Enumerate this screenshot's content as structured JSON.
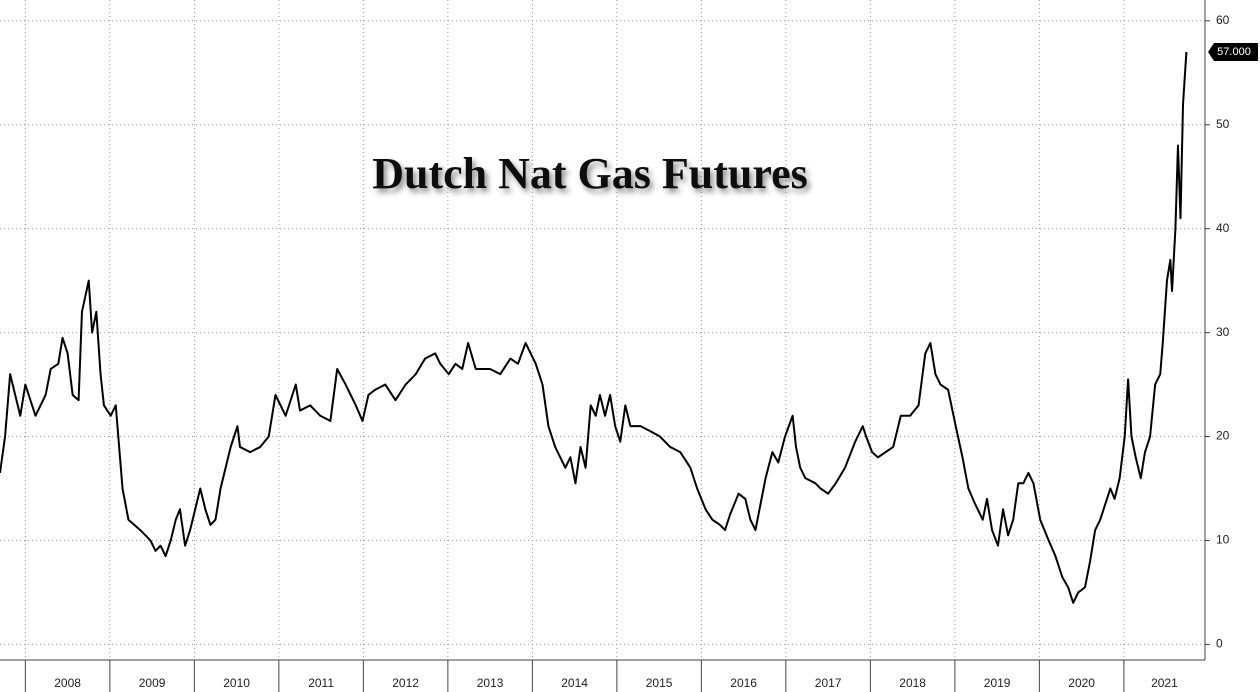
{
  "chart_data": {
    "type": "line",
    "title": "Dutch Nat Gas Futures",
    "color": "#000000",
    "grid": true,
    "xlim": [
      2007.7,
      2021.96
    ],
    "ylim": [
      -1.5,
      62
    ],
    "xticks": [
      2008,
      2009,
      2010,
      2011,
      2012,
      2013,
      2014,
      2015,
      2016,
      2017,
      2018,
      2019,
      2020,
      2021
    ],
    "yticks": [
      0,
      10,
      20,
      30,
      40,
      50,
      60
    ],
    "last_price": {
      "value": 57,
      "label": "57.000"
    },
    "x": [
      2007.7,
      2007.76,
      2007.82,
      2007.88,
      2007.94,
      2008.0,
      2008.12,
      2008.24,
      2008.3,
      2008.39,
      2008.44,
      2008.5,
      2008.56,
      2008.63,
      2008.67,
      2008.75,
      2008.79,
      2008.84,
      2008.89,
      2008.93,
      2009.01,
      2009.07,
      2009.1,
      2009.15,
      2009.22,
      2009.36,
      2009.48,
      2009.54,
      2009.6,
      2009.66,
      2009.72,
      2009.78,
      2009.83,
      2009.89,
      2009.95,
      2010.01,
      2010.07,
      2010.13,
      2010.19,
      2010.25,
      2010.31,
      2010.37,
      2010.43,
      2010.51,
      2010.54,
      2010.66,
      2010.78,
      2010.88,
      2010.96,
      2011.08,
      2011.2,
      2011.25,
      2011.37,
      2011.49,
      2011.61,
      2011.69,
      2011.79,
      2011.85,
      2011.91,
      2011.99,
      2012.06,
      2012.14,
      2012.26,
      2012.38,
      2012.5,
      2012.62,
      2012.73,
      2012.85,
      2012.91,
      2013.01,
      2013.09,
      2013.17,
      2013.24,
      2013.33,
      2013.5,
      2013.62,
      2013.74,
      2013.83,
      2013.92,
      2013.98,
      2014.04,
      2014.12,
      2014.19,
      2014.27,
      2014.39,
      2014.45,
      2014.51,
      2014.57,
      2014.63,
      2014.69,
      2014.75,
      2014.8,
      2014.86,
      2014.92,
      2014.98,
      2015.04,
      2015.1,
      2015.16,
      2015.28,
      2015.4,
      2015.51,
      2015.63,
      2015.75,
      2015.87,
      2015.95,
      2016.05,
      2016.13,
      2016.22,
      2016.28,
      2016.34,
      2016.44,
      2016.52,
      2016.58,
      2016.64,
      2016.7,
      2016.76,
      2016.84,
      2016.91,
      2016.99,
      2017.08,
      2017.12,
      2017.17,
      2017.23,
      2017.35,
      2017.41,
      2017.5,
      2017.59,
      2017.7,
      2017.82,
      2017.91,
      2017.95,
      2018.02,
      2018.09,
      2018.18,
      2018.27,
      2018.36,
      2018.47,
      2018.57,
      2018.65,
      2018.71,
      2018.77,
      2018.83,
      2018.92,
      2019.01,
      2019.09,
      2019.16,
      2019.24,
      2019.33,
      2019.38,
      2019.44,
      2019.51,
      2019.57,
      2019.63,
      2019.69,
      2019.75,
      2019.81,
      2019.87,
      2019.93,
      2020.01,
      2020.11,
      2020.19,
      2020.27,
      2020.34,
      2020.4,
      2020.46,
      2020.54,
      2020.6,
      2020.66,
      2020.72,
      2020.78,
      2020.84,
      2020.89,
      2020.95,
      2021.01,
      2021.05,
      2021.09,
      2021.14,
      2021.2,
      2021.25,
      2021.31,
      2021.37,
      2021.43,
      2021.46,
      2021.51,
      2021.55,
      2021.57,
      2021.61,
      2021.64,
      2021.67,
      2021.7,
      2021.74
    ],
    "values": [
      16.5,
      20,
      26,
      24,
      22,
      25,
      22,
      24,
      26.5,
      27,
      29.5,
      28,
      24,
      23.5,
      32,
      35,
      30,
      32,
      26,
      23,
      22,
      23,
      20,
      15,
      12,
      11,
      10,
      9,
      9.5,
      8.5,
      10,
      12,
      13,
      9.5,
      11,
      13,
      15,
      13,
      11.5,
      12,
      15,
      17,
      19,
      21,
      19,
      18.5,
      19,
      20,
      24,
      22,
      25,
      22.5,
      23,
      22,
      21.5,
      26.5,
      25,
      24,
      23,
      21.5,
      24,
      24.5,
      25,
      23.5,
      25,
      26,
      27.5,
      28,
      27,
      26,
      27,
      26.5,
      29,
      26.5,
      26.5,
      26,
      27.5,
      27,
      29,
      28,
      27,
      25,
      21,
      19,
      17,
      18,
      15.5,
      19,
      17,
      23,
      22,
      24,
      22,
      24,
      21,
      19.5,
      23,
      21,
      21,
      20.5,
      20,
      19,
      18.5,
      17,
      15,
      13,
      12,
      11.5,
      11,
      12.5,
      14.5,
      14,
      12,
      11,
      13.5,
      16,
      18.5,
      17.5,
      20,
      22,
      19,
      17,
      16,
      15.5,
      15,
      14.5,
      15.5,
      17,
      19.5,
      21,
      20,
      18.5,
      18,
      18.5,
      19,
      22,
      22,
      23,
      28,
      29,
      26,
      25,
      24.5,
      21,
      18,
      15,
      13.5,
      12,
      14,
      11,
      9.5,
      13,
      10.5,
      12,
      15.5,
      15.5,
      16.5,
      15.5,
      12,
      10,
      8.5,
      6.5,
      5.5,
      4,
      5,
      5.5,
      8,
      11,
      12,
      13.5,
      15,
      14,
      16,
      20,
      25.5,
      20,
      18,
      16,
      18.5,
      20,
      25,
      26,
      29,
      35,
      37,
      34,
      40,
      48,
      41,
      52,
      57
    ]
  }
}
